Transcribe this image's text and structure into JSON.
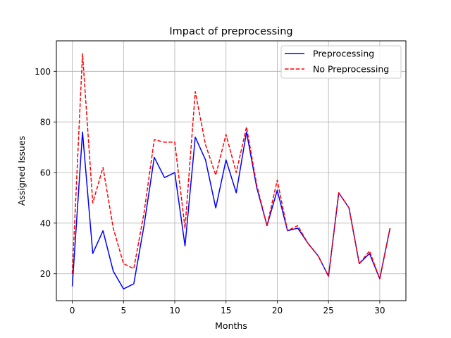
{
  "chart_data": {
    "type": "line",
    "title": "Impact of preprocessing",
    "xlabel": "Months",
    "ylabel": "Assigned Issues",
    "xlim": [
      -1.55,
      32.55
    ],
    "ylim": [
      9.35,
      112.05
    ],
    "x_ticks": [
      0,
      5,
      10,
      15,
      20,
      25,
      30
    ],
    "y_ticks": [
      20,
      40,
      60,
      80,
      100
    ],
    "grid": true,
    "legend_position": "top-right",
    "x": [
      0,
      1,
      2,
      3,
      4,
      5,
      6,
      7,
      8,
      9,
      10,
      11,
      12,
      13,
      14,
      15,
      16,
      17,
      18,
      19,
      20,
      21,
      22,
      23,
      24,
      25,
      26,
      27,
      28,
      29,
      30,
      31
    ],
    "series": [
      {
        "name": "Preprocessing",
        "color": "#0000ff",
        "style": "solid",
        "values": [
          15,
          76,
          28,
          37,
          21,
          14,
          16,
          39,
          66,
          58,
          60,
          31,
          74,
          65,
          46,
          65,
          52,
          76,
          54,
          39,
          53,
          37,
          38,
          32,
          27,
          19,
          52,
          46,
          24,
          28,
          18,
          38
        ]
      },
      {
        "name": "No Preprocessing",
        "color": "#ff0000",
        "style": "dashed",
        "values": [
          20,
          107,
          48,
          62,
          38,
          24,
          22,
          44,
          73,
          72,
          72,
          38,
          92,
          71,
          59,
          75,
          60,
          78,
          55,
          39,
          57,
          37,
          39,
          32,
          27,
          19,
          52,
          46,
          24,
          29,
          18,
          38
        ]
      }
    ]
  }
}
